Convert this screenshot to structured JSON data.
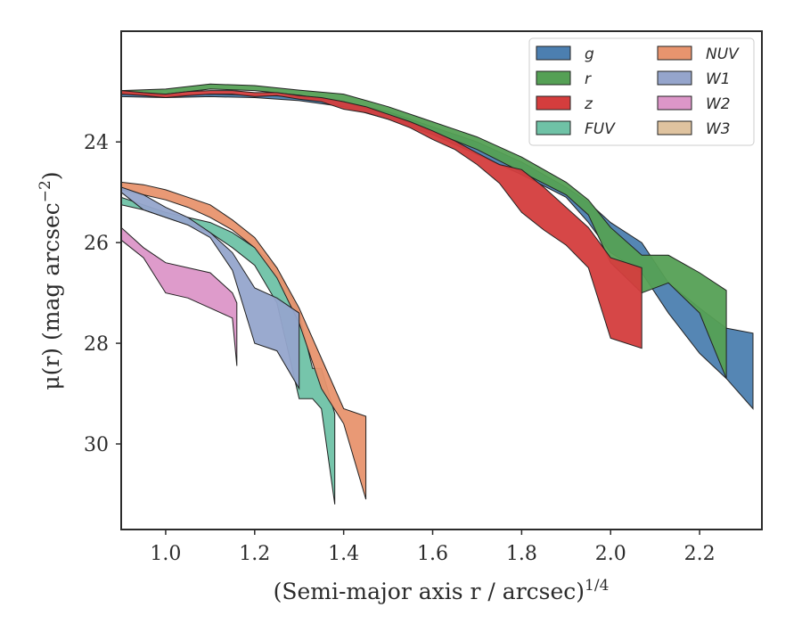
{
  "chart_data": {
    "type": "area",
    "xlabel": "(Semi-major axis r / arcsec)",
    "xlabel_exponent": "1/4",
    "ylabel": "μ(r) (mag arcsec",
    "ylabel_exponent": "−2",
    "ylabel_close": ")",
    "xlim": [
      0.9,
      2.34
    ],
    "ylim": [
      31.7,
      21.8
    ],
    "y_inverted": true,
    "grid": false,
    "legend_position": "top-right",
    "legend_columns": 2,
    "x_ticks": [
      1.0,
      1.2,
      1.4,
      1.6,
      1.8,
      2.0,
      2.2
    ],
    "x_tick_labels": [
      "1.0",
      "1.2",
      "1.4",
      "1.6",
      "1.8",
      "2.0",
      "2.2"
    ],
    "y_ticks": [
      24,
      26,
      28,
      30
    ],
    "y_tick_labels": [
      "24",
      "26",
      "28",
      "30"
    ],
    "series": [
      {
        "name": "g",
        "color": "#4c7fb0",
        "x": [
          0.9,
          1.0,
          1.1,
          1.2,
          1.3,
          1.4,
          1.5,
          1.6,
          1.7,
          1.8,
          1.9,
          1.95,
          2.0,
          2.07,
          2.13,
          2.2,
          2.26,
          2.32
        ],
        "y_upper": [
          23.05,
          23.08,
          23.05,
          23.07,
          23.1,
          23.2,
          23.4,
          23.7,
          24.0,
          24.4,
          24.9,
          25.2,
          25.6,
          26.0,
          26.8,
          27.3,
          27.7,
          27.8
        ],
        "y_lower": [
          23.1,
          23.12,
          23.1,
          23.12,
          23.18,
          23.3,
          23.55,
          23.85,
          24.25,
          24.65,
          25.1,
          25.6,
          26.2,
          26.6,
          27.4,
          28.2,
          28.7,
          29.3
        ]
      },
      {
        "name": "r",
        "color": "#55a055",
        "x": [
          0.9,
          1.0,
          1.1,
          1.2,
          1.3,
          1.4,
          1.5,
          1.6,
          1.7,
          1.8,
          1.9,
          1.95,
          2.0,
          2.07,
          2.13,
          2.2,
          2.26
        ],
        "y_upper": [
          22.98,
          22.95,
          22.85,
          22.88,
          22.97,
          23.05,
          23.3,
          23.6,
          23.9,
          24.3,
          24.8,
          25.15,
          25.7,
          26.25,
          26.25,
          26.6,
          26.95
        ],
        "y_lower": [
          23.05,
          23.05,
          22.95,
          22.98,
          23.07,
          23.2,
          23.45,
          23.8,
          24.15,
          24.6,
          25.05,
          25.45,
          26.4,
          27.0,
          26.8,
          27.4,
          28.7
        ]
      },
      {
        "name": "z",
        "color": "#d43d3d",
        "x": [
          0.9,
          0.95,
          1.0,
          1.05,
          1.1,
          1.15,
          1.2,
          1.25,
          1.3,
          1.35,
          1.4,
          1.45,
          1.5,
          1.55,
          1.6,
          1.65,
          1.7,
          1.75,
          1.8,
          1.85,
          1.9,
          1.95,
          2.0,
          2.07
        ],
        "y_upper": [
          22.98,
          23.02,
          23.05,
          23.0,
          22.98,
          22.98,
          23.02,
          23.02,
          23.08,
          23.12,
          23.2,
          23.3,
          23.45,
          23.6,
          23.78,
          23.98,
          24.22,
          24.45,
          24.55,
          24.9,
          25.3,
          25.7,
          26.3,
          26.5
        ],
        "y_lower": [
          23.05,
          23.08,
          23.12,
          23.08,
          23.05,
          23.05,
          23.1,
          23.08,
          23.15,
          23.2,
          23.35,
          23.42,
          23.55,
          23.72,
          23.95,
          24.15,
          24.45,
          24.82,
          25.4,
          25.75,
          26.05,
          26.5,
          27.9,
          28.1
        ]
      },
      {
        "name": "FUV",
        "color": "#6fc2a6",
        "x": [
          0.9,
          0.95,
          1.0,
          1.05,
          1.1,
          1.15,
          1.2,
          1.25,
          1.3,
          1.33,
          1.35,
          1.38
        ],
        "y_upper": [
          25.1,
          25.25,
          25.4,
          25.5,
          25.6,
          25.8,
          26.1,
          26.5,
          27.4,
          28.5,
          28.5,
          29.4
        ],
        "y_lower": [
          25.25,
          25.35,
          25.5,
          25.65,
          25.8,
          26.1,
          26.45,
          27.2,
          29.1,
          29.1,
          29.3,
          31.2
        ]
      },
      {
        "name": "NUV",
        "color": "#e8946e",
        "x": [
          0.9,
          0.95,
          1.0,
          1.05,
          1.1,
          1.15,
          1.2,
          1.25,
          1.3,
          1.35,
          1.4,
          1.45
        ],
        "y_upper": [
          24.8,
          24.85,
          24.95,
          25.1,
          25.25,
          25.55,
          25.9,
          26.5,
          27.3,
          28.3,
          29.3,
          29.45
        ],
        "y_lower": [
          24.95,
          25.05,
          25.15,
          25.3,
          25.5,
          25.75,
          26.1,
          26.7,
          27.6,
          28.9,
          29.6,
          31.1
        ]
      },
      {
        "name": "W1",
        "color": "#95a5cc",
        "x": [
          0.9,
          0.95,
          1.0,
          1.05,
          1.1,
          1.15,
          1.2,
          1.25,
          1.3
        ],
        "y_upper": [
          24.9,
          25.05,
          25.3,
          25.5,
          25.8,
          26.2,
          26.9,
          27.1,
          27.4
        ],
        "y_lower": [
          25.0,
          25.35,
          25.5,
          25.65,
          25.9,
          26.55,
          28.0,
          28.15,
          28.9
        ]
      },
      {
        "name": "W2",
        "color": "#dc96c8",
        "x": [
          0.9,
          0.95,
          1.0,
          1.05,
          1.1,
          1.15,
          1.16
        ],
        "y_upper": [
          25.7,
          26.1,
          26.4,
          26.5,
          26.6,
          27.0,
          27.2
        ],
        "y_lower": [
          25.95,
          26.3,
          27.0,
          27.1,
          27.3,
          27.5,
          28.45
        ]
      },
      {
        "name": "W3",
        "color": "#dfc39f",
        "x": [],
        "y_upper": [],
        "y_lower": []
      }
    ]
  }
}
